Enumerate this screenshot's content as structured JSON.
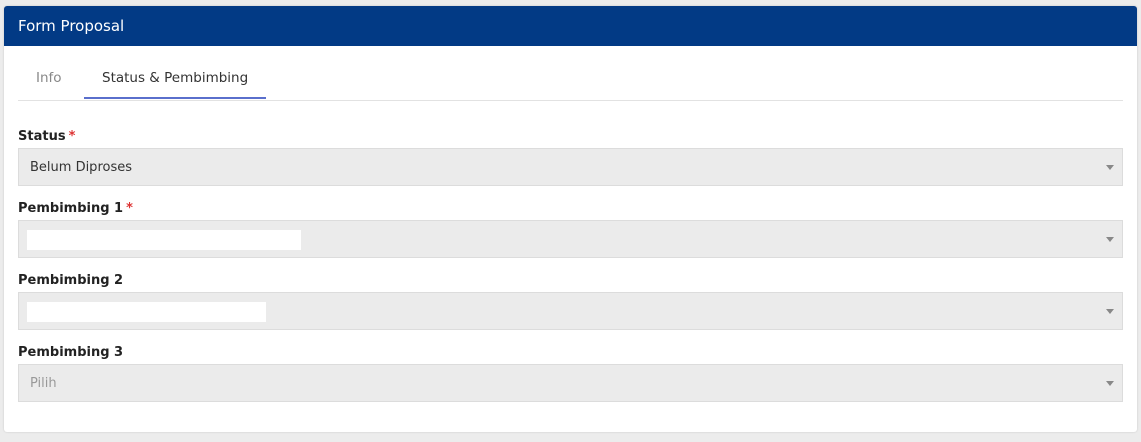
{
  "header": {
    "title": "Form Proposal"
  },
  "tabs": [
    {
      "label": "Info"
    },
    {
      "label": "Status & Pembimbing"
    }
  ],
  "active_tab": 1,
  "fields": [
    {
      "label": "Status",
      "required": "*",
      "value": "Belum Diproses"
    },
    {
      "label": "Pembimbing 1",
      "required": "*"
    },
    {
      "label": "Pembimbing 2"
    },
    {
      "label": "Pembimbing 3",
      "placeholder": "Pilih"
    }
  ]
}
